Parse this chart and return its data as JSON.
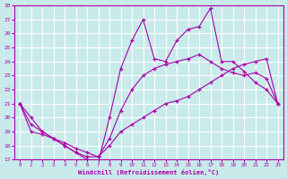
{
  "background_color": "#c8eaea",
  "grid_color": "#ffffff",
  "line_color": "#aa00aa",
  "marker": "+",
  "xlabel": "Windchill (Refroidissement éolien,°C)",
  "xlim": [
    -0.5,
    23.5
  ],
  "ylim": [
    17,
    28
  ],
  "yticks": [
    17,
    18,
    19,
    20,
    21,
    22,
    23,
    24,
    25,
    26,
    27,
    28
  ],
  "xticks": [
    0,
    1,
    2,
    3,
    4,
    5,
    6,
    7,
    8,
    9,
    10,
    11,
    12,
    13,
    14,
    15,
    16,
    17,
    18,
    19,
    20,
    21,
    22,
    23
  ],
  "series": [
    {
      "x": [
        0,
        1,
        2,
        3,
        4,
        5,
        6,
        7,
        8,
        9,
        10,
        11,
        12,
        13,
        14,
        15,
        16,
        17,
        18,
        19,
        20,
        21,
        22,
        23
      ],
      "y": [
        21,
        20,
        19,
        18.5,
        18,
        17.5,
        17,
        16.8,
        20,
        23.5,
        25.5,
        27.0,
        24.2,
        24.0,
        25.5,
        26.3,
        26.5,
        27.8,
        24.0,
        24.0,
        23.3,
        22.5,
        22.0,
        21.0
      ]
    },
    {
      "x": [
        0,
        1,
        2,
        3,
        4,
        5,
        6,
        7,
        8,
        9,
        10,
        11,
        12,
        13,
        14,
        15,
        16,
        17,
        18,
        19,
        20,
        21,
        22,
        23
      ],
      "y": [
        21,
        19.5,
        19.0,
        18.5,
        18.0,
        17.5,
        17.2,
        17.2,
        18.5,
        20.5,
        22.0,
        23.0,
        23.5,
        23.8,
        24.0,
        24.2,
        24.5,
        24.0,
        23.5,
        23.2,
        23.0,
        23.2,
        22.8,
        21.0
      ]
    },
    {
      "x": [
        0,
        1,
        2,
        3,
        4,
        5,
        6,
        7,
        8,
        9,
        10,
        11,
        12,
        13,
        14,
        15,
        16,
        17,
        18,
        19,
        20,
        21,
        22,
        23
      ],
      "y": [
        21,
        19.0,
        18.8,
        18.5,
        18.2,
        17.8,
        17.5,
        17.2,
        18.0,
        19.0,
        19.5,
        20.0,
        20.5,
        21.0,
        21.2,
        21.5,
        22.0,
        22.5,
        23.0,
        23.5,
        23.8,
        24.0,
        24.2,
        21.0
      ]
    }
  ]
}
